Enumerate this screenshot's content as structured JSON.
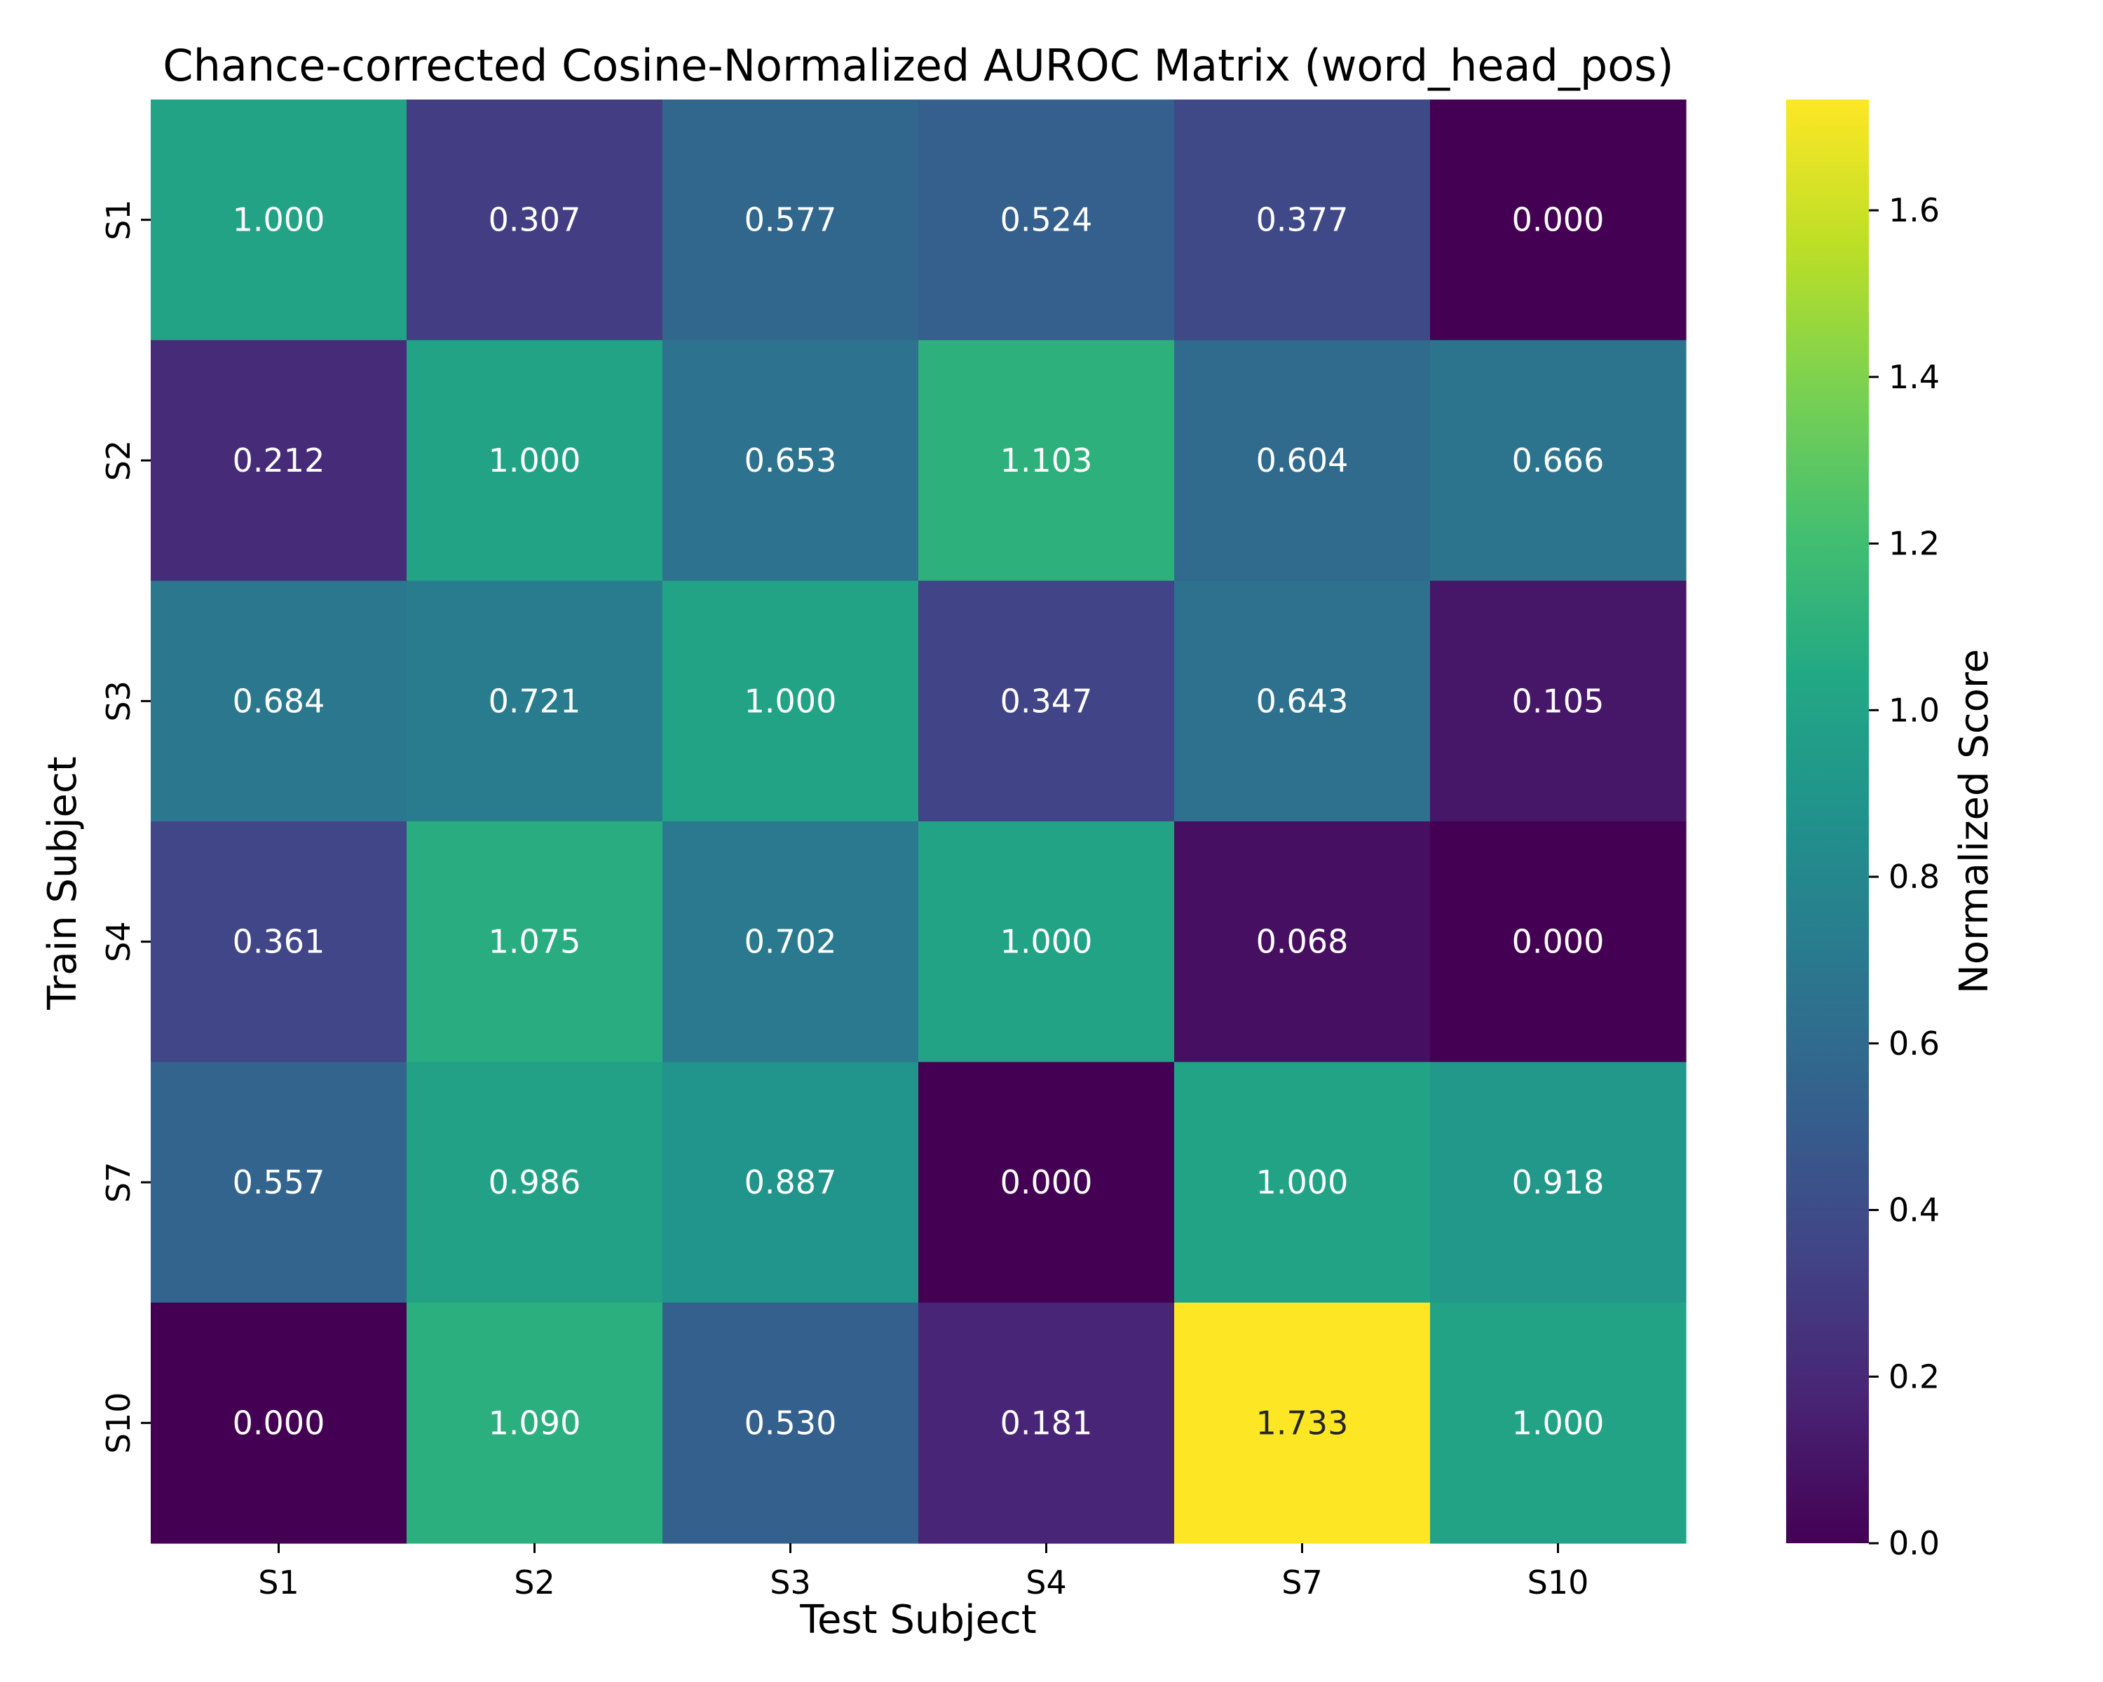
{
  "chart_data": {
    "type": "heatmap",
    "title": "Chance-corrected Cosine-Normalized AUROC Matrix (word_head_pos)",
    "xlabel": "Test Subject",
    "ylabel": "Train Subject",
    "x_categories": [
      "S1",
      "S2",
      "S3",
      "S4",
      "S7",
      "S10"
    ],
    "y_categories": [
      "S1",
      "S2",
      "S3",
      "S4",
      "S7",
      "S10"
    ],
    "values": [
      [
        1.0,
        0.307,
        0.577,
        0.524,
        0.377,
        0.0
      ],
      [
        0.212,
        1.0,
        0.653,
        1.103,
        0.604,
        0.666
      ],
      [
        0.684,
        0.721,
        1.0,
        0.347,
        0.643,
        0.105
      ],
      [
        0.361,
        1.075,
        0.702,
        1.0,
        0.068,
        0.0
      ],
      [
        0.557,
        0.986,
        0.887,
        0.0,
        1.0,
        0.918
      ],
      [
        0.0,
        1.09,
        0.53,
        0.181,
        1.733,
        1.0
      ]
    ],
    "value_labels": [
      [
        "1.000",
        "0.307",
        "0.577",
        "0.524",
        "0.377",
        "0.000"
      ],
      [
        "0.212",
        "1.000",
        "0.653",
        "1.103",
        "0.604",
        "0.666"
      ],
      [
        "0.684",
        "0.721",
        "1.000",
        "0.347",
        "0.643",
        "0.105"
      ],
      [
        "0.361",
        "1.075",
        "0.702",
        "1.000",
        "0.068",
        "0.000"
      ],
      [
        "0.557",
        "0.986",
        "0.887",
        "0.000",
        "1.000",
        "0.918"
      ],
      [
        "0.000",
        "1.090",
        "0.530",
        "0.181",
        "1.733",
        "1.000"
      ]
    ],
    "colormap": "viridis",
    "vmin": 0.0,
    "vmax": 1.733,
    "colorbar": {
      "label": "Normalized Score",
      "ticks": [
        0.0,
        0.2,
        0.4,
        0.6,
        0.8,
        1.0,
        1.2,
        1.4,
        1.6
      ],
      "tick_labels": [
        "0.0",
        "0.2",
        "0.4",
        "0.6",
        "0.8",
        "1.0",
        "1.2",
        "1.4",
        "1.6"
      ]
    },
    "grid": false
  }
}
